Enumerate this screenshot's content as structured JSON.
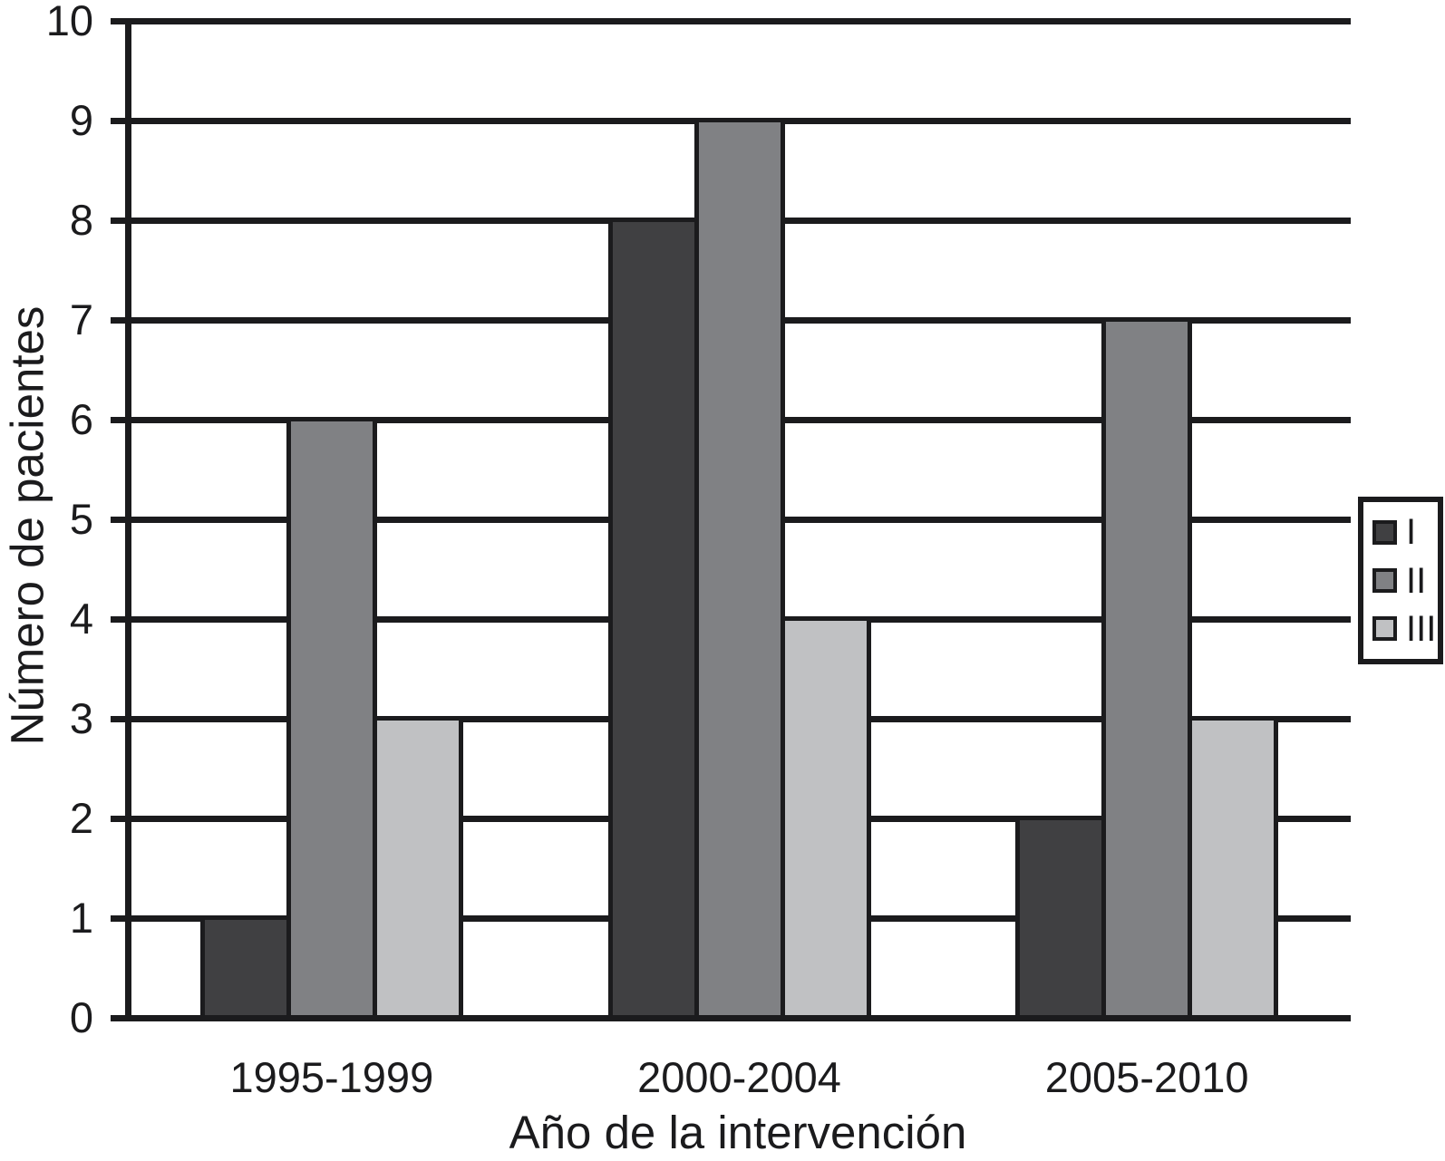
{
  "chart_data": {
    "type": "bar",
    "title": "",
    "xlabel": "Año de la intervención",
    "ylabel": "Número de pacientes",
    "categories": [
      "1995-1999",
      "2000-2004",
      "2005-2010"
    ],
    "series": [
      {
        "name": "I",
        "color": "#404042",
        "values": [
          1,
          8,
          2
        ]
      },
      {
        "name": "II",
        "color": "#808184",
        "values": [
          6,
          9,
          7
        ]
      },
      {
        "name": "III",
        "color": "#c0c1c3",
        "values": [
          3,
          4,
          3
        ]
      }
    ],
    "ylim": [
      0,
      10
    ],
    "ytick_step": 1,
    "yticks": [
      0,
      1,
      2,
      3,
      4,
      5,
      6,
      7,
      8,
      9,
      10
    ],
    "grid": true,
    "legend": {
      "position": "right",
      "entries": [
        "I",
        "II",
        "III"
      ]
    },
    "axis_color": "#1b1b1d",
    "background": "#ffffff"
  }
}
